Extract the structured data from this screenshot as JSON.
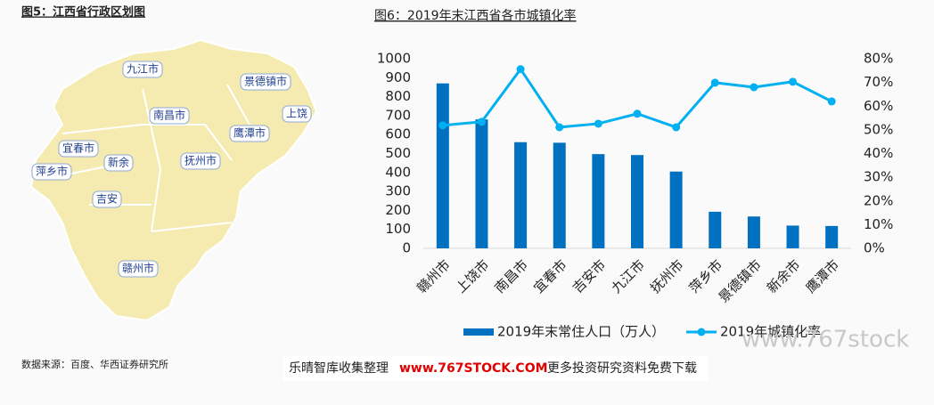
{
  "map": {
    "title": "图5：江西省行政区划图",
    "labels": [
      "九江市",
      "景德镇市",
      "南昌市",
      "上饶",
      "鹰潭市",
      "宜春市",
      "新余",
      "抚州市",
      "萍乡市",
      "吉安",
      "赣州市"
    ]
  },
  "chart_data": {
    "type": "combo",
    "title": "图6：2019年末江西省各市城镇化率",
    "categories": [
      "赣州市",
      "上饶市",
      "南昌市",
      "宜春市",
      "吉安市",
      "九江市",
      "抚州市",
      "萍乡市",
      "景德镇市",
      "新余市",
      "鹰潭市"
    ],
    "series": [
      {
        "name": "2019年末常住人口（万人）",
        "type": "bar",
        "color": "#0070c0",
        "values": [
          870,
          680,
          560,
          557,
          497,
          492,
          405,
          193,
          168,
          120,
          118
        ]
      },
      {
        "name": "2019年城镇化率",
        "type": "line",
        "axis": "y2",
        "color": "#00b0f0",
        "values": [
          51.9,
          53.4,
          75.6,
          51.1,
          52.6,
          56.8,
          51.1,
          69.9,
          68.0,
          70.3,
          62.0
        ]
      }
    ],
    "ylim": [
      0,
      1000
    ],
    "yticks": [
      0,
      100,
      200,
      300,
      400,
      500,
      600,
      700,
      800,
      900,
      1000
    ],
    "y2lim": [
      0,
      80
    ],
    "y2ticks": [
      {
        "value": 0,
        "label": "0%"
      },
      {
        "value": 10,
        "label": "10%"
      },
      {
        "value": 20,
        "label": "20%"
      },
      {
        "value": 30,
        "label": "30%"
      },
      {
        "value": 40,
        "label": "40%"
      },
      {
        "value": 50,
        "label": "50%"
      },
      {
        "value": 60,
        "label": "60%"
      },
      {
        "value": 70,
        "label": "70%"
      },
      {
        "value": 80,
        "label": "80%"
      }
    ],
    "grid": false,
    "legend": "bottom"
  },
  "source": "数据来源：百度、华西证券研究所",
  "footer": {
    "left": "乐晴智库收集整理",
    "url": "www.767STOCK.COM",
    "right": "更多投资研究资料免费下载"
  },
  "watermark": "www.767stock"
}
